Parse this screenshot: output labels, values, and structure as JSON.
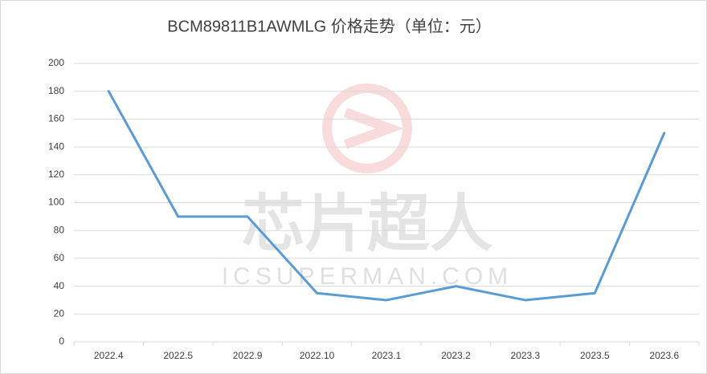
{
  "chart_data": {
    "type": "line",
    "title": "BCM89811B1AWMLG 价格走势（单位：元）",
    "watermark": {
      "text": "芯片超人",
      "subtext": "ICSUPERMAN.COM"
    },
    "categories": [
      "2022.4",
      "2022.5",
      "2022.9",
      "2022.10",
      "2023.1",
      "2023.2",
      "2023.3",
      "2023.5",
      "2023.6"
    ],
    "values": [
      180,
      90,
      90,
      35,
      30,
      40,
      30,
      35,
      150
    ],
    "color": "#5b9bd5",
    "ylim": [
      0,
      200
    ],
    "yticks": [
      0,
      20,
      40,
      60,
      80,
      100,
      120,
      140,
      160,
      180,
      200
    ],
    "grid": true
  }
}
